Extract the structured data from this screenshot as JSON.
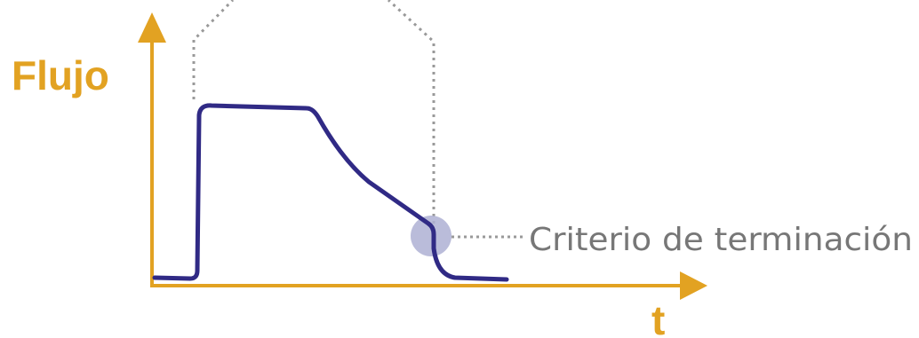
{
  "diagram": {
    "y_axis_label": "Flujo",
    "x_axis_label": "t",
    "annotation": "Criterio de terminación"
  },
  "colors": {
    "axis": "#e2a222",
    "curve": "#302a85",
    "marker": "#aeb0d3",
    "guide": "#999999",
    "annotation_text": "#777777"
  }
}
